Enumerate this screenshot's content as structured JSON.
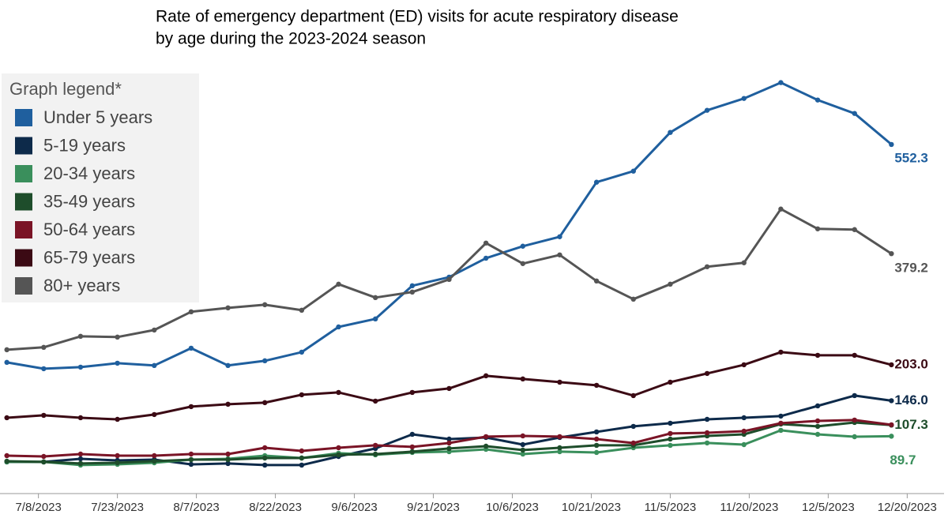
{
  "chart_data": {
    "type": "line",
    "title": [
      "Rate of emergency department (ED) visits for acute respiratory disease",
      "by age during the 2023-2024 season"
    ],
    "legend_title": "Graph legend*",
    "legend": "top-left",
    "x": [
      "7/2/2023",
      "7/9/2023",
      "7/16/2023",
      "7/23/2023",
      "7/30/2023",
      "8/6/2023",
      "8/13/2023",
      "8/20/2023",
      "8/27/2023",
      "9/3/2023",
      "9/10/2023",
      "9/17/2023",
      "9/24/2023",
      "10/1/2023",
      "10/8/2023",
      "10/15/2023",
      "10/22/2023",
      "10/29/2023",
      "11/5/2023",
      "11/12/2023",
      "11/19/2023",
      "11/26/2023",
      "12/3/2023",
      "12/10/2023",
      "12/17/2023"
    ],
    "xlim": [
      "7/1/2023",
      "12/27/2023"
    ],
    "xticks": [
      "7/8/2023",
      "7/23/2023",
      "8/7/2023",
      "8/22/2023",
      "9/6/2023",
      "9/21/2023",
      "10/6/2023",
      "10/21/2023",
      "11/5/2023",
      "11/20/2023",
      "12/5/2023",
      "12/20/2023"
    ],
    "ylim": [
      0,
      700
    ],
    "series": [
      {
        "name": "Under 5 years",
        "color": "#1f5f9e",
        "end_label": "552.3",
        "values": [
          206.8,
          196.7,
          199.2,
          205.5,
          201.8,
          229.3,
          201.8,
          209.3,
          223,
          263,
          275.7,
          328.3,
          342,
          372,
          391,
          406,
          492.5,
          510,
          571.4,
          606.5,
          625.3,
          650.4,
          622.8,
          601.5,
          552.3
        ]
      },
      {
        "name": "5-19 years",
        "color": "#0d2a4a",
        "end_label": "146.0",
        "values": [
          48.9,
          48.9,
          53.9,
          51.4,
          52.6,
          45.1,
          46.4,
          43.9,
          43.9,
          57.6,
          70.2,
          92.7,
          85.2,
          87.7,
          76.4,
          87.7,
          96.5,
          105.3,
          110.3,
          116.5,
          119,
          121.6,
          137.8,
          154.1,
          146
        ]
      },
      {
        "name": "20-34 years",
        "color": "#3a8f5c",
        "end_label": "89.7",
        "values": [
          48.9,
          48.9,
          43.9,
          45.1,
          47.6,
          52.6,
          53.9,
          58.9,
          55.1,
          62.7,
          60.2,
          63.9,
          65.2,
          68.9,
          61.4,
          65.2,
          63.9,
          71.4,
          75.2,
          79,
          76.4,
          99,
          92.7,
          88.9,
          89.7
        ]
      },
      {
        "name": "35-49 years",
        "color": "#1e4d2b",
        "end_label": "107.3",
        "values": [
          50.1,
          48.9,
          46.4,
          47.6,
          50.1,
          52.6,
          52.6,
          55.1,
          55.1,
          60.2,
          61.4,
          65.2,
          70.2,
          73.9,
          67.7,
          71.4,
          75.2,
          75.2,
          85.2,
          90.2,
          92.7,
          109,
          105.3,
          111.5,
          107.3
        ]
      },
      {
        "name": "50-64 years",
        "color": "#7a1426",
        "values": [
          58.9,
          57.6,
          61.4,
          58.9,
          58.9,
          61.4,
          61.4,
          71.4,
          66.4,
          71.4,
          75.2,
          72.7,
          78.9,
          89,
          90.2,
          89,
          85.2,
          78.9,
          94,
          95.2,
          97.7,
          110.3,
          114,
          115.3,
          107.8
        ]
      },
      {
        "name": "65-79 years",
        "color": "#3b0a14",
        "end_label": "203.0",
        "values": [
          119,
          122.8,
          119,
          116.5,
          124.1,
          136.6,
          140.4,
          142.9,
          155.4,
          159.1,
          145.4,
          159.1,
          165.4,
          185.5,
          180.5,
          175.4,
          170.4,
          154.1,
          175.4,
          189.2,
          203,
          223,
          218,
          218,
          203
        ]
      },
      {
        "name": "80+ years",
        "color": "#555555",
        "end_label": "379.2",
        "values": [
          226.8,
          230.6,
          248.1,
          246.9,
          258.1,
          287,
          293.2,
          298.2,
          289.5,
          330.8,
          309.5,
          318.3,
          338.3,
          396,
          363.4,
          377.2,
          335.8,
          307,
          330.8,
          358.4,
          364.7,
          449.9,
          418.5,
          417.3,
          379.2
        ]
      }
    ]
  }
}
